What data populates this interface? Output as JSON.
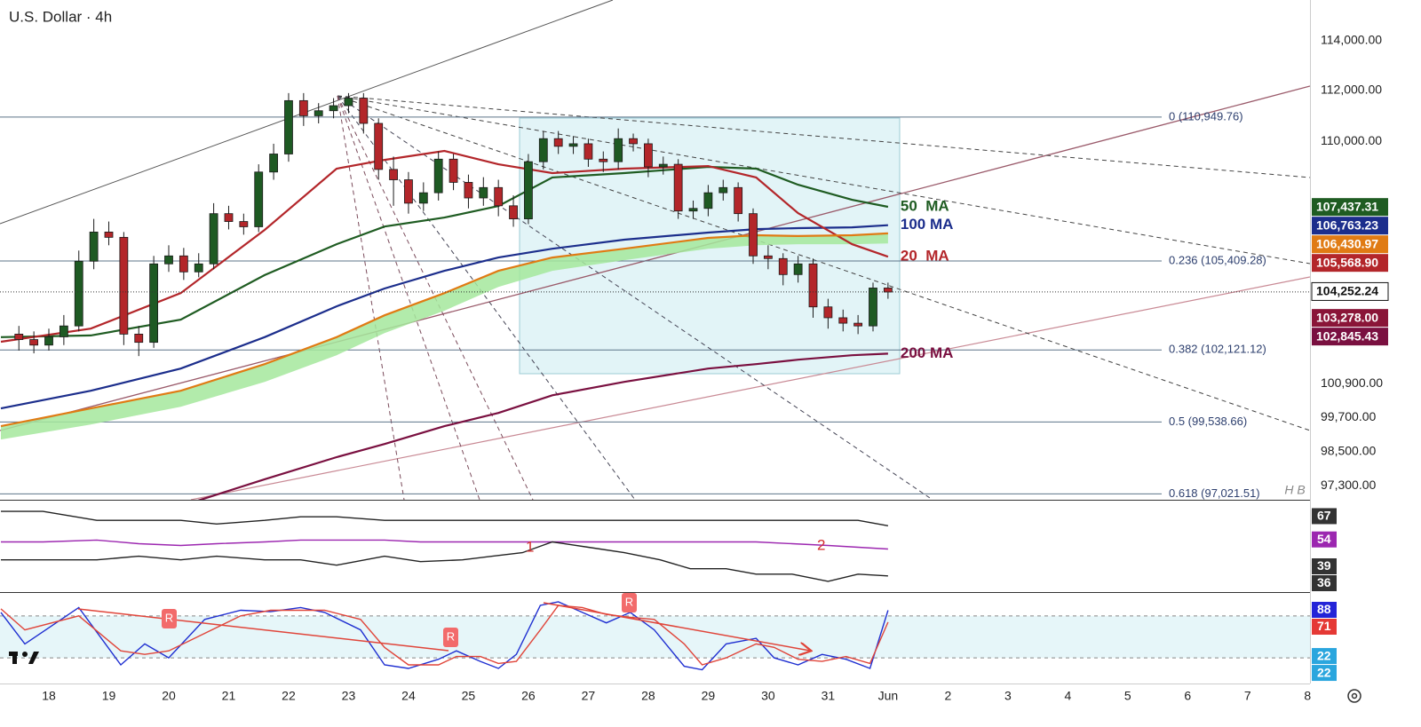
{
  "chart_data": [
    {
      "type": "candlestick",
      "title": "U.S. Dollar · 4h",
      "log_scale": true,
      "xlim": [
        17.185,
        39.04
      ],
      "xticks": [
        18,
        19,
        20,
        21,
        22,
        23,
        24,
        25,
        26,
        27,
        28,
        29,
        30,
        31,
        {
          "value": 32,
          "label": "Jun"
        },
        {
          "value": 33,
          "label": "2"
        },
        {
          "value": 34,
          "label": "3"
        },
        {
          "value": 35,
          "label": "4"
        },
        {
          "value": 36,
          "label": "5"
        },
        {
          "value": 37,
          "label": "6"
        },
        {
          "value": 38,
          "label": "7"
        },
        {
          "value": 39,
          "label": "8"
        }
      ],
      "ylim": [
        96820,
        115670
      ],
      "yticks": [
        {
          "value": 114000,
          "label": "114,000.00"
        },
        {
          "value": 112000,
          "label": "112,000.00"
        },
        {
          "value": 110000,
          "label": "110,000.00"
        },
        {
          "value": 100900,
          "label": "100,900.00"
        },
        {
          "value": 99700,
          "label": "99,700.00"
        },
        {
          "value": 98500,
          "label": "98,500.00"
        },
        {
          "value": 97300,
          "label": "97,300.00"
        }
      ],
      "up_color": "#1e5a23",
      "down_color": "#b3262a",
      "x": [
        17.5,
        17.75,
        18,
        18.25,
        18.5,
        18.75,
        19,
        19.25,
        19.5,
        19.75,
        20,
        20.25,
        20.5,
        20.75,
        21,
        21.25,
        21.5,
        21.75,
        22,
        22.25,
        22.5,
        22.75,
        23,
        23.25,
        23.5,
        23.75,
        24,
        24.25,
        24.5,
        24.75,
        25,
        25.25,
        25.5,
        25.75,
        26,
        26.25,
        26.5,
        26.75,
        27,
        27.25,
        27.5,
        27.75,
        28,
        28.25,
        28.5,
        28.75,
        29,
        29.25,
        29.5,
        29.75,
        30,
        30.25,
        30.5,
        30.75,
        31,
        31.25,
        31.5,
        31.75,
        32
      ],
      "open": [
        102700,
        102500,
        102300,
        102600,
        103000,
        105400,
        106500,
        106300,
        102700,
        102400,
        105300,
        105600,
        105000,
        105300,
        107200,
        106900,
        106700,
        108800,
        109500,
        111600,
        111000,
        111200,
        111400,
        111700,
        110700,
        108900,
        108500,
        107600,
        108000,
        109300,
        108400,
        107800,
        108200,
        107500,
        107000,
        109200,
        110100,
        109800,
        109900,
        109300,
        109200,
        110100,
        109900,
        109000,
        109100,
        107300,
        107400,
        108000,
        108200,
        107200,
        105600,
        105500,
        104900,
        105300,
        103700,
        103300,
        103100,
        103000,
        104400
      ],
      "high": [
        103000,
        102800,
        102900,
        103400,
        105800,
        107000,
        106900,
        106500,
        103000,
        105600,
        106000,
        105900,
        105700,
        107600,
        107500,
        107200,
        109100,
        109900,
        111900,
        111900,
        111500,
        111700,
        111900,
        111900,
        110900,
        109400,
        108800,
        108400,
        109600,
        109500,
        108700,
        108600,
        108500,
        107900,
        109500,
        110400,
        110400,
        110200,
        110100,
        109600,
        110500,
        110300,
        110100,
        109400,
        109300,
        107700,
        108300,
        108500,
        108400,
        107400,
        106000,
        105700,
        105600,
        105500,
        104000,
        103600,
        103400,
        104600,
        104600
      ],
      "low": [
        102100,
        102000,
        102100,
        102300,
        102800,
        105100,
        106000,
        102300,
        101900,
        102200,
        105000,
        104700,
        104800,
        105100,
        106600,
        106400,
        106500,
        108500,
        109200,
        110600,
        110700,
        110900,
        111100,
        110300,
        108500,
        107500,
        107200,
        107300,
        107700,
        108100,
        107400,
        107500,
        107100,
        106700,
        106800,
        108900,
        109500,
        109500,
        109000,
        108800,
        108900,
        109600,
        108600,
        108700,
        107000,
        107000,
        107100,
        107700,
        106900,
        105300,
        105100,
        104500,
        104600,
        103300,
        102900,
        102800,
        102700,
        102800,
        104000
      ],
      "close": [
        102500,
        102300,
        102600,
        103000,
        105400,
        106500,
        106300,
        102700,
        102400,
        105300,
        105600,
        105000,
        105300,
        107200,
        106900,
        106700,
        108800,
        109500,
        111600,
        111000,
        111200,
        111400,
        111700,
        110700,
        108900,
        108500,
        107600,
        108000,
        109300,
        108400,
        107800,
        108200,
        107500,
        107000,
        109200,
        110100,
        109800,
        109900,
        109300,
        109200,
        110100,
        109900,
        109000,
        109100,
        107300,
        107400,
        108000,
        108200,
        107200,
        105600,
        105500,
        104900,
        105300,
        103700,
        103300,
        103100,
        103000,
        104400,
        104250
      ],
      "ma_x": [
        17.2,
        18.7,
        20.2,
        21.6,
        22.8,
        23.6,
        24.6,
        25.5,
        26.4,
        27.6,
        29.0,
        29.8,
        30.5,
        31.4,
        32.0
      ],
      "moving_averages": [
        {
          "name": "50  MA",
          "color": "#1f5c22",
          "values": [
            102590,
            102650,
            103230,
            104880,
            106040,
            106710,
            107050,
            107490,
            108590,
            108760,
            109000,
            108930,
            108310,
            107730,
            107460
          ]
        },
        {
          "name": "100 MA",
          "color": "#1c2e8c",
          "values": [
            100020,
            100650,
            101450,
            102590,
            103720,
            104380,
            105040,
            105540,
            105870,
            106210,
            106480,
            106610,
            106650,
            106680,
            106760
          ]
        },
        {
          "name": "20  MA",
          "color": "#b3262a",
          "values": [
            102420,
            102900,
            104210,
            106580,
            108930,
            109270,
            109620,
            109100,
            108760,
            108930,
            109030,
            108590,
            107220,
            106040,
            105570
          ]
        },
        {
          "color": "#e07b14",
          "values": [
            99390,
            100020,
            100650,
            101610,
            102590,
            103390,
            104210,
            105040,
            105540,
            105870,
            106280,
            106380,
            106350,
            106380,
            106450
          ],
          "ribbon_color": "#a4e89c",
          "ribbon_lower": [
            98920,
            99450,
            100080,
            100970,
            101930,
            102740,
            103560,
            104440,
            105040,
            105440,
            105870,
            106000,
            106040,
            106040,
            106070
          ]
        },
        {
          "name": "200 MA",
          "color": "#7a1040",
          "values": [
            null,
            null,
            96600,
            97530,
            98300,
            98760,
            99390,
            99860,
            100490,
            100970,
            101450,
            101610,
            101770,
            101930,
            101990
          ]
        }
      ],
      "fib_levels": [
        {
          "value": 110949.76,
          "label": "0 (110,949.76)"
        },
        {
          "value": 105409.28,
          "label": "0.236 (105,409.28)"
        },
        {
          "value": 102121.12,
          "label": "0.382 (102,121.12)"
        },
        {
          "value": 99538.66,
          "label": "0.5 (99,538.66)"
        },
        {
          "value": 97021.51,
          "label": "0.618 (97,021.51)"
        }
      ],
      "fib_color": "#5d7489",
      "last_price": {
        "value": 104252.24,
        "label": "104,252.24"
      },
      "price_badges": [
        {
          "value": 107437.31,
          "label": "107,437.31",
          "color": "#1f5c22"
        },
        {
          "value": 106763.23,
          "label": "106,763.23",
          "color": "#1c2e8c"
        },
        {
          "value": 106430.97,
          "label": "106,430.97",
          "color": "#e07b14"
        },
        {
          "value": 105568.9,
          "label": "105,568.90",
          "color": "#b3262a"
        },
        {
          "value": 103278.0,
          "label": "103,278.00",
          "color": "#8a1538"
        },
        {
          "value": 102845.43,
          "label": "102,845.43",
          "color": "#7a1040"
        }
      ],
      "watermark": "H B"
    },
    {
      "type": "line",
      "ylim": [
        30,
        81.5
      ],
      "x": [
        17.2,
        17.9,
        18.8,
        19.5,
        20.2,
        20.8,
        21.6,
        22.2,
        22.8,
        23.6,
        24.2,
        24.9,
        25.4,
        25.9,
        26.4,
        27.0,
        27.6,
        28.2,
        28.7,
        29.3,
        29.8,
        30.4,
        31.0,
        31.5,
        32.0
      ],
      "series": [
        {
          "color": "#222222",
          "values": [
            75,
            75,
            70,
            70,
            70,
            68,
            70,
            72,
            72,
            70,
            70,
            70,
            70,
            70,
            70,
            70,
            70,
            70,
            70,
            70,
            70,
            70,
            70,
            70,
            67
          ]
        },
        {
          "color": "#9c27b0",
          "values": [
            58,
            58,
            59,
            57,
            56,
            57,
            58,
            59,
            59,
            59,
            58,
            58,
            58,
            58,
            58,
            58,
            58,
            58,
            58,
            58,
            58,
            57,
            56,
            55,
            54
          ]
        },
        {
          "color": "#222222",
          "values": [
            48,
            48,
            48,
            50,
            48,
            50,
            48,
            48,
            45,
            50,
            47,
            48,
            50,
            52,
            58,
            55,
            52,
            48,
            43,
            43,
            40,
            40,
            36,
            40,
            39
          ]
        }
      ],
      "badges": [
        {
          "value": 67,
          "color": "#333333"
        },
        {
          "value": 54,
          "color": "#9c27b0"
        },
        {
          "value": 39,
          "color": "#333333"
        },
        {
          "value": 36,
          "color": "#333333"
        }
      ],
      "annotations": [
        "1",
        "2"
      ]
    },
    {
      "type": "line",
      "ylim": [
        -16.6,
        114
      ],
      "levels": [
        80,
        20
      ],
      "x": [
        17.2,
        17.6,
        18.5,
        19.2,
        19.6,
        20.0,
        20.6,
        21.2,
        21.7,
        22.2,
        22.6,
        23.2,
        23.6,
        24.0,
        24.5,
        24.8,
        25.2,
        25.5,
        25.8,
        26.2,
        26.5,
        26.9,
        27.3,
        27.7,
        28.1,
        28.6,
        28.9,
        29.3,
        29.8,
        30.1,
        30.5,
        30.9,
        31.3,
        31.7,
        32.0
      ],
      "series": [
        {
          "color": "#1f2fd1",
          "values": [
            85,
            40,
            92,
            10,
            40,
            20,
            75,
            88,
            86,
            92,
            85,
            60,
            10,
            5,
            18,
            30,
            15,
            5,
            25,
            95,
            100,
            85,
            70,
            85,
            60,
            8,
            3,
            40,
            48,
            20,
            10,
            25,
            18,
            5,
            88
          ]
        },
        {
          "color": "#e0453a",
          "values": [
            90,
            60,
            80,
            30,
            25,
            30,
            55,
            80,
            88,
            88,
            88,
            75,
            35,
            10,
            10,
            22,
            22,
            12,
            15,
            60,
            95,
            92,
            82,
            78,
            75,
            40,
            10,
            20,
            40,
            35,
            18,
            15,
            22,
            12,
            71
          ]
        }
      ],
      "badges": [
        {
          "value": 88,
          "color": "#2424d8"
        },
        {
          "value": 71,
          "color": "#e53935"
        },
        {
          "value": 22,
          "color": "#2aa6de"
        },
        {
          "value": 22,
          "color": "#2aa6de"
        }
      ],
      "annotations": [
        "R",
        "R",
        "R"
      ]
    }
  ]
}
